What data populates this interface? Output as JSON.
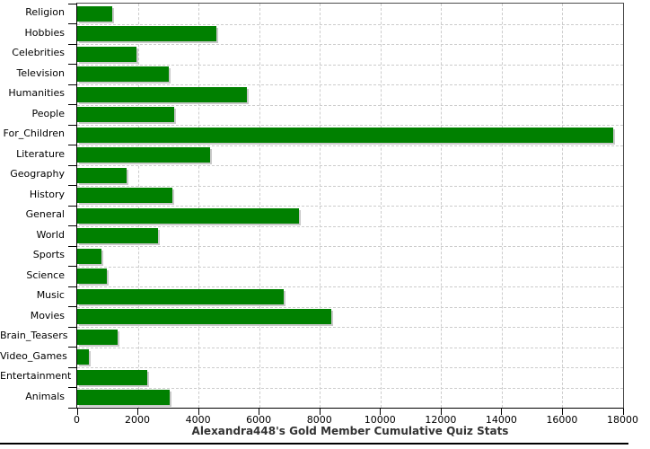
{
  "chart_data": {
    "type": "bar",
    "orientation": "horizontal",
    "title": "Alexandra448's Gold Member Cumulative Quiz Stats",
    "categories": [
      "Religion",
      "Hobbies",
      "Celebrities",
      "Television",
      "Humanities",
      "People",
      "For_Children",
      "Literature",
      "Geography",
      "History",
      "General",
      "World",
      "Sports",
      "Science",
      "Music",
      "Movies",
      "Brain_Teasers",
      "Video_Games",
      "Entertainment",
      "Animals"
    ],
    "values": [
      1140,
      4590,
      1940,
      3010,
      5600,
      3190,
      17680,
      4380,
      1630,
      3130,
      7300,
      2650,
      790,
      990,
      6810,
      8390,
      1320,
      390,
      2300,
      3060
    ],
    "xlabel": "",
    "ylabel": "",
    "xlim": [
      0,
      18000
    ],
    "x_ticks": [
      0,
      2000,
      4000,
      6000,
      8000,
      10000,
      12000,
      14000,
      16000,
      18000
    ],
    "x_tick_labels": [
      "0",
      "2000",
      "4000",
      "6000",
      "8000",
      "10000",
      "12000",
      "14000",
      "16000",
      "18000"
    ],
    "grid": "dashed",
    "legend": "none",
    "bar_color": "#008000",
    "bar_shadow_color": "#c9c9c9",
    "gridline_color": "#cccccc",
    "axis_color": "#000000",
    "plot_border_color": "#4d4d4d",
    "title_color": "#333333",
    "background": "#ffffff"
  }
}
